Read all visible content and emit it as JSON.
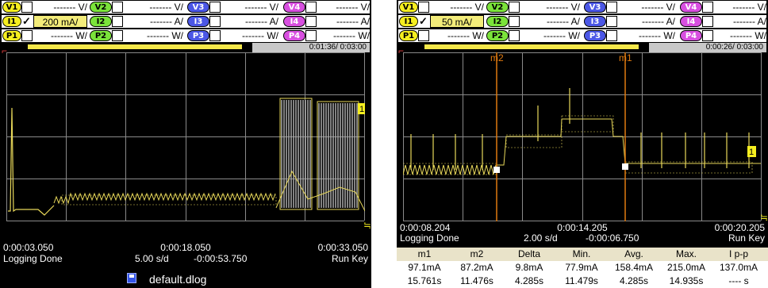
{
  "left": {
    "channels": [
      {
        "v_chip": "V1",
        "v_val": "------- V/",
        "i_chip": "I1",
        "i_val": "200 mA/",
        "p_chip": "P1",
        "p_val": "------- W/"
      },
      {
        "v_chip": "V2",
        "v_val": "------- V/",
        "i_chip": "I2",
        "i_val": "------- A/",
        "p_chip": "P2",
        "p_val": "------- W/"
      },
      {
        "v_chip": "V3",
        "v_val": "------- V/",
        "i_chip": "I3",
        "i_val": "------- A/",
        "p_chip": "P3",
        "p_val": "------- W/"
      },
      {
        "v_chip": "V4",
        "v_val": "------- V/",
        "i_chip": "I4",
        "i_val": "------- A/",
        "p_chip": "P4",
        "p_val": "------- W/"
      }
    ],
    "check_mark": "✓",
    "time_box": "0:01:36/ 0:03:00",
    "marker_tag": "1",
    "x_start": "0:00:03.050",
    "x_mid": "0:00:18.050",
    "x_end": "0:00:33.050",
    "status": "Logging Done",
    "scale": "5.00 s/d",
    "offset": "-0:00:53.750",
    "run_key": "Run Key",
    "file_name": "default.dlog"
  },
  "right": {
    "channels": [
      {
        "v_chip": "V1",
        "v_val": "------- V/",
        "i_chip": "I1",
        "i_val": "50 mA/",
        "p_chip": "P1",
        "p_val": "------- W/"
      },
      {
        "v_chip": "V2",
        "v_val": "------- V/",
        "i_chip": "I2",
        "i_val": "------- A/",
        "p_chip": "P2",
        "p_val": "------- W/"
      },
      {
        "v_chip": "V3",
        "v_val": "------- V/",
        "i_chip": "I3",
        "i_val": "------- A/",
        "p_chip": "P3",
        "p_val": "------- W/"
      },
      {
        "v_chip": "V4",
        "v_val": "------- V/",
        "i_chip": "I4",
        "i_val": "------- A/",
        "p_chip": "P4",
        "p_val": "------- W/"
      }
    ],
    "check_mark": "✓",
    "time_box": "0:00:26/ 0:03:00",
    "marker_tag": "1",
    "cursor_m2": "m2",
    "cursor_m1": "m1",
    "x_start": "0:00:08.204",
    "x_mid": "0:00:14.205",
    "x_end": "0:00:20.205",
    "status": "Logging Done",
    "scale": "2.00 s/d",
    "offset": "-0:00:06.750",
    "run_key": "Run Key",
    "table_headers": [
      "m1",
      "m2",
      "Delta",
      "Min.",
      "Avg.",
      "Max.",
      "I p-p"
    ],
    "table_row1": [
      "97.1mA",
      "87.2mA",
      "9.8mA",
      "77.9mA",
      "158.4mA",
      "215.0mA",
      "137.0mA"
    ],
    "table_row2": [
      "15.761s",
      "11.476s",
      "4.285s",
      "11.479s",
      "4.285s",
      "14.935s",
      "---- s"
    ]
  },
  "colors": {
    "background": "#000000",
    "grid": "#8a8a8a",
    "trace": "#e8d85a",
    "trace_fill": "#b8b8b8",
    "cursor": "#e07a10",
    "v_chip": "#f5ee20",
    "i_chip": "#f5ee20",
    "p_chip": "#f5ee20",
    "ch2_chip": "#7be33a",
    "ch3_chip": "#4b57e6",
    "ch4_chip": "#d84fe0",
    "highlight": "#f3ec7a",
    "file_icon": "#3354e8"
  },
  "icons": {
    "trigger": "trigger-marker-icon",
    "floppy": "floppy-disk-icon",
    "edge": "edge-marker-icon"
  }
}
